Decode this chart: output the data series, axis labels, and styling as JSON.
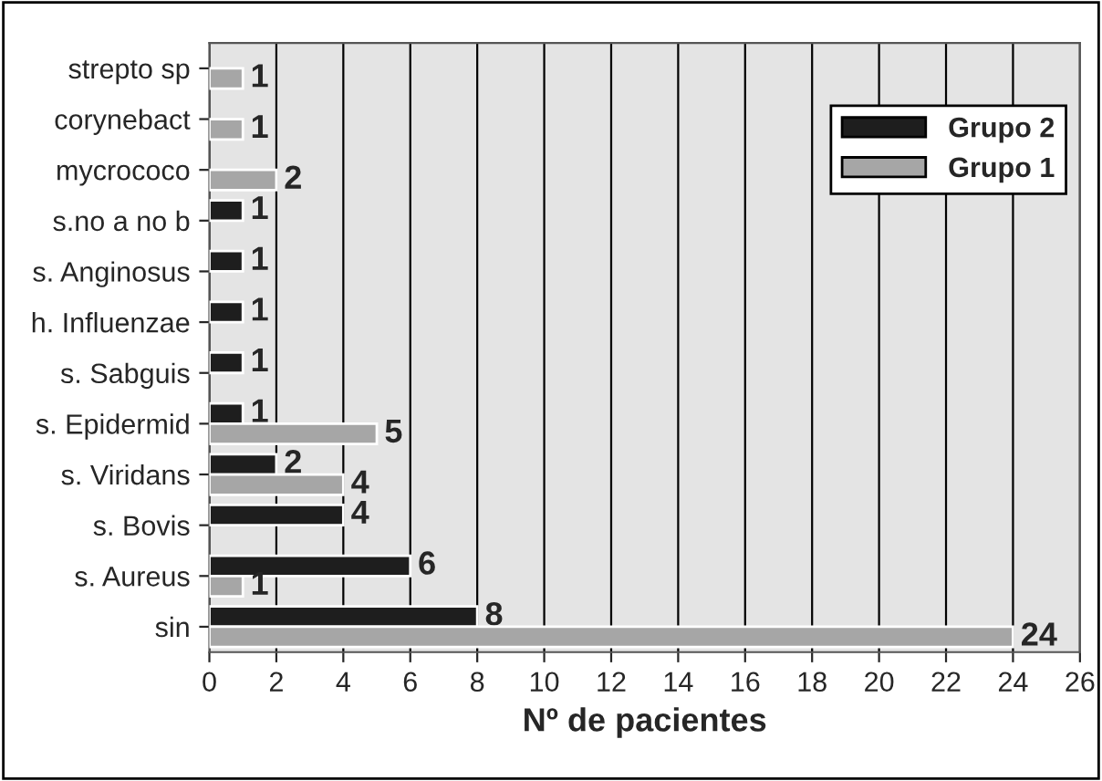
{
  "chart_data": {
    "type": "bar",
    "orientation": "horizontal",
    "xlabel": "Nº de pacientes",
    "categories": [
      "strepto sp",
      "corynebact",
      "mycrococo",
      "s.no a no b",
      "s. Anginosus",
      "h. Influenzae",
      "s. Sabguis",
      "s. Epidermid",
      "s. Viridans",
      "s. Bovis",
      "s. Aureus",
      "sin"
    ],
    "series": [
      {
        "name": "Grupo 2",
        "color": "#1e1e1e",
        "values": [
          null,
          null,
          null,
          1,
          1,
          1,
          1,
          1,
          2,
          4,
          6,
          8
        ]
      },
      {
        "name": "Grupo 1",
        "color": "#a6a6a6",
        "values": [
          1,
          1,
          2,
          null,
          null,
          null,
          null,
          5,
          4,
          null,
          1,
          24
        ]
      }
    ],
    "xlim": [
      0,
      26
    ],
    "xticks": [
      0,
      2,
      4,
      6,
      8,
      10,
      12,
      14,
      16,
      18,
      20,
      22,
      24,
      26
    ],
    "grid": "x",
    "legend": "top right",
    "data_labels": true
  }
}
